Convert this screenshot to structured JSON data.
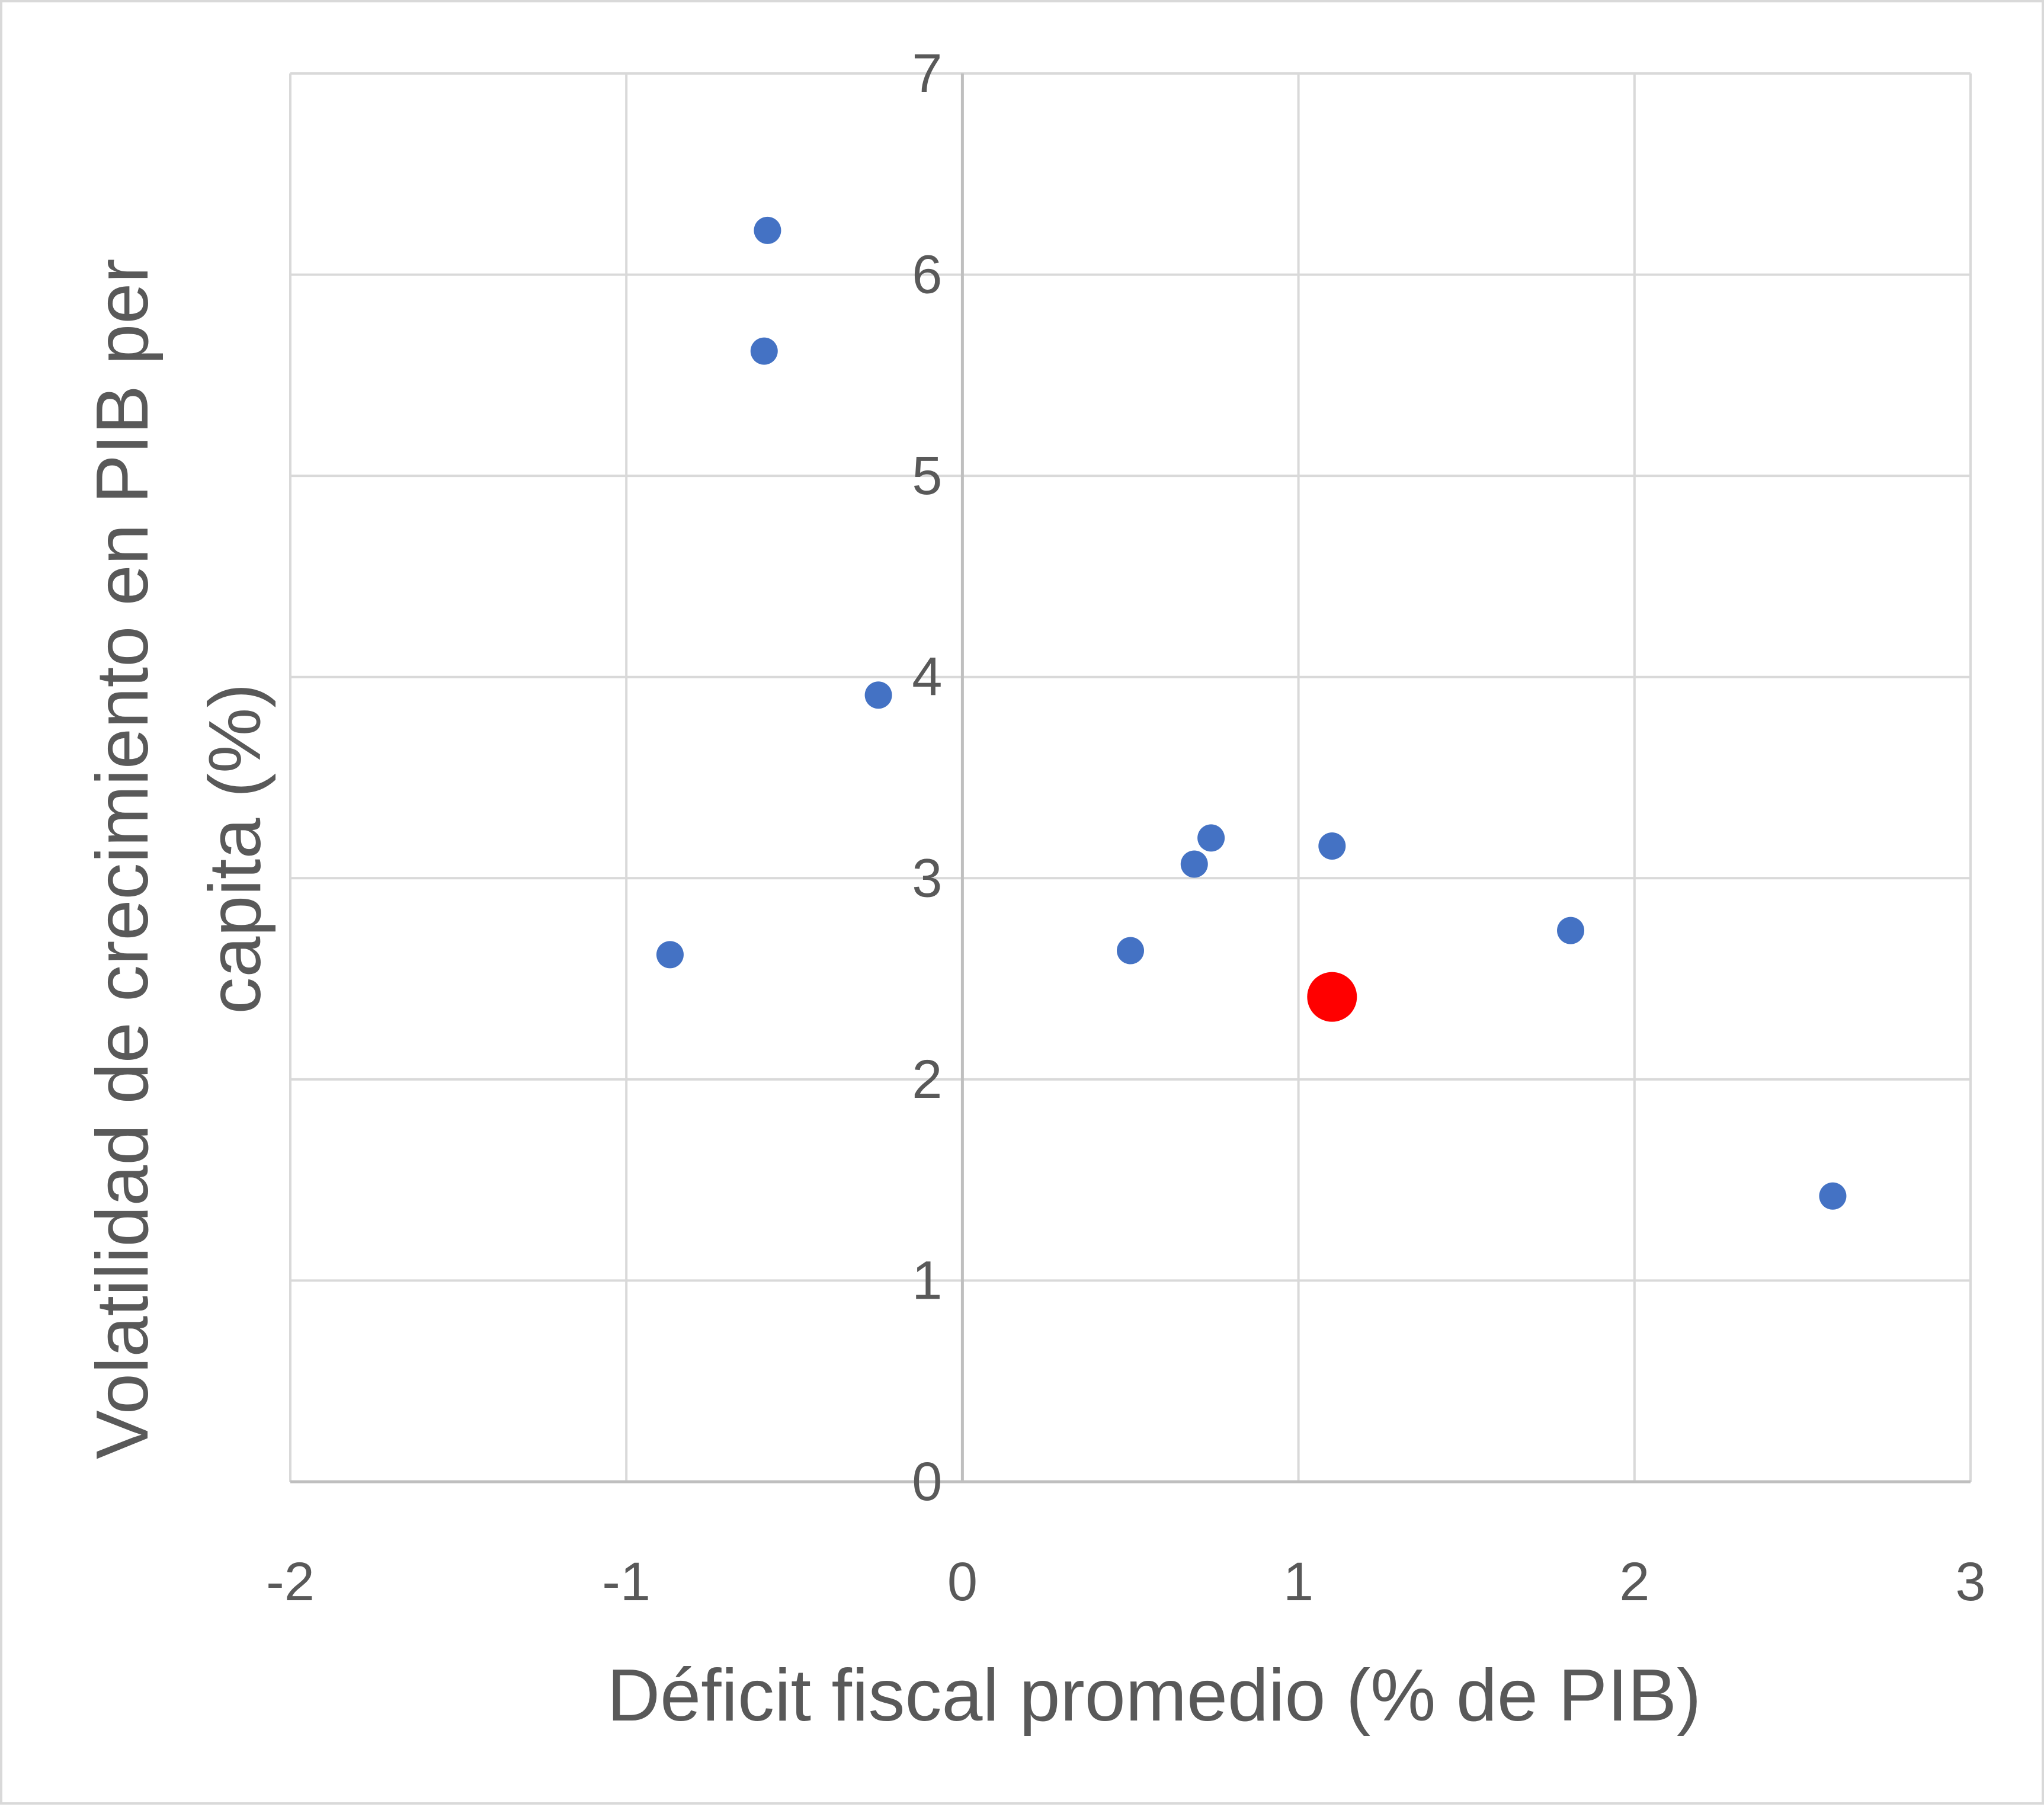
{
  "chart_data": {
    "type": "scatter",
    "title": "",
    "xlabel": "Déficit fiscal promedio (% de PIB)",
    "ylabel_lines": [
      "Volatilidad de crecimiento en PIB per",
      "capita (%)"
    ],
    "xlim": [
      -2,
      3
    ],
    "ylim": [
      0,
      7
    ],
    "x_ticks": [
      -2,
      -1,
      0,
      1,
      2,
      3
    ],
    "x_tick_labels": [
      "-2",
      "-1",
      "0",
      "1",
      "2",
      "3"
    ],
    "y_ticks": [
      0,
      1,
      2,
      3,
      4,
      5,
      6,
      7
    ],
    "y_tick_labels": [
      "0",
      "1",
      "2",
      "3",
      "4",
      "5",
      "6",
      "7"
    ],
    "grid": true,
    "series": [
      {
        "color": "#4472c4",
        "points": [
          {
            "x": -0.58,
            "y": 6.22
          },
          {
            "x": -0.59,
            "y": 5.62
          },
          {
            "x": -0.87,
            "y": 2.62
          },
          {
            "x": -0.25,
            "y": 3.91
          },
          {
            "x": 0.5,
            "y": 2.64
          },
          {
            "x": 0.69,
            "y": 3.07
          },
          {
            "x": 0.74,
            "y": 3.2
          },
          {
            "x": 1.1,
            "y": 3.16
          },
          {
            "x": 1.81,
            "y": 2.74
          },
          {
            "x": 2.59,
            "y": 1.42
          }
        ]
      },
      {
        "color": "#ff0000",
        "highlight": true,
        "points": [
          {
            "x": 1.1,
            "y": 2.41
          }
        ]
      }
    ]
  }
}
